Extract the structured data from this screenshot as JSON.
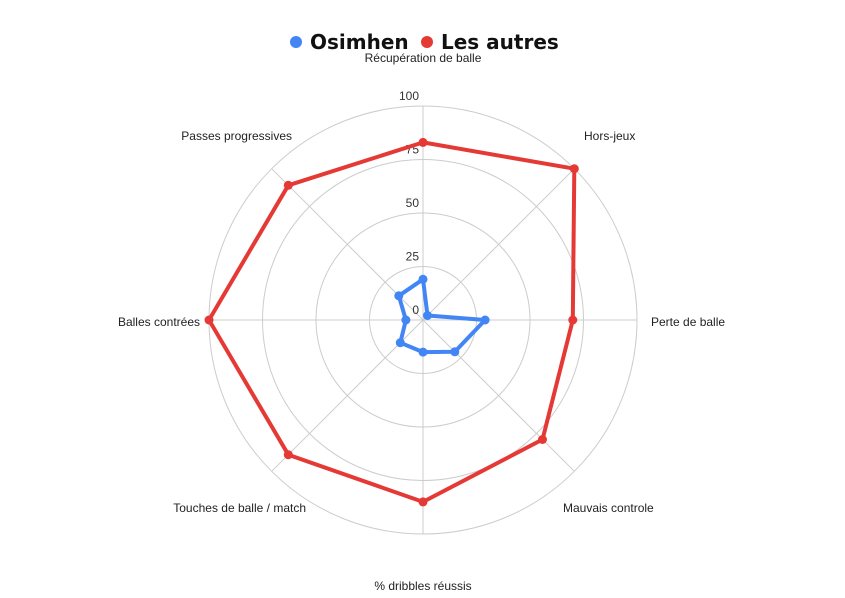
{
  "chart_data": {
    "type": "radar",
    "axes": [
      "Récupération de balle",
      "Hors-jeux",
      "Perte de balle",
      "Mauvais controle",
      "% dribbles réussis",
      "Touches de balle / match",
      "Balles contrées",
      "Passes progressives"
    ],
    "rlim": [
      0,
      100
    ],
    "ticks": [
      "0",
      "25",
      "50",
      "75",
      "100"
    ],
    "tick_values": [
      0,
      25,
      50,
      75,
      100
    ],
    "grid": true,
    "legend_position": "top",
    "series": [
      {
        "name": "Osimhen",
        "color": "#4285F4",
        "values": [
          19,
          3,
          29,
          21,
          15,
          15,
          8,
          16
        ]
      },
      {
        "name": "Les autres",
        "color": "#E53935",
        "values": [
          83,
          100,
          70,
          79,
          85,
          89,
          100,
          89
        ]
      }
    ]
  }
}
